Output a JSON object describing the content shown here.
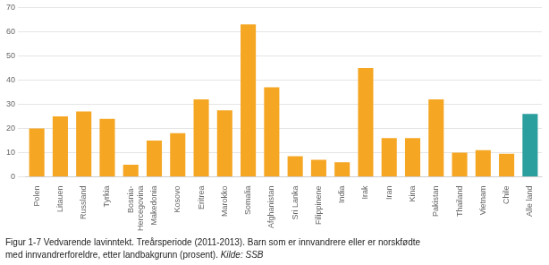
{
  "chart_data": {
    "type": "bar",
    "categories": [
      "Polen",
      "Litauen",
      "Russland",
      "Tyrkia",
      "Bosnia-\nHercegovina",
      "Makedonia",
      "Kosovo",
      "Eritrea",
      "Marokko",
      "Somalia",
      "Afghanistan",
      "Sri Lanka",
      "Filippinene",
      "India",
      "Irak",
      "Iran",
      "Kina",
      "Pakistan",
      "Thailand",
      "Vietnam",
      "Chile",
      "Alle land"
    ],
    "values": [
      20,
      25,
      27,
      24,
      5,
      15,
      18,
      32,
      27.5,
      63,
      37,
      8.5,
      7,
      6,
      45,
      16,
      16,
      32,
      10,
      11,
      9.5,
      26
    ],
    "colors": [
      "#F5A623",
      "#F5A623",
      "#F5A623",
      "#F5A623",
      "#F5A623",
      "#F5A623",
      "#F5A623",
      "#F5A623",
      "#F5A623",
      "#F5A623",
      "#F5A623",
      "#F5A623",
      "#F5A623",
      "#F5A623",
      "#F5A623",
      "#F5A623",
      "#F5A623",
      "#F5A623",
      "#F5A623",
      "#F5A623",
      "#F5A623",
      "#2B9E9E"
    ],
    "ylim": [
      0,
      70
    ],
    "yticks": [
      0,
      10,
      20,
      30,
      40,
      50,
      60,
      70
    ],
    "grid": true,
    "annotations": [
      "Figur 1-7 Vedvarende lavinntekt. Treårsperiode (2011-2013). Barn som er innvandrere eller er norskfødte",
      "med innvandrerforeldre, etter landbakgrunn (prosent). ",
      "Kilde: SSB"
    ]
  }
}
